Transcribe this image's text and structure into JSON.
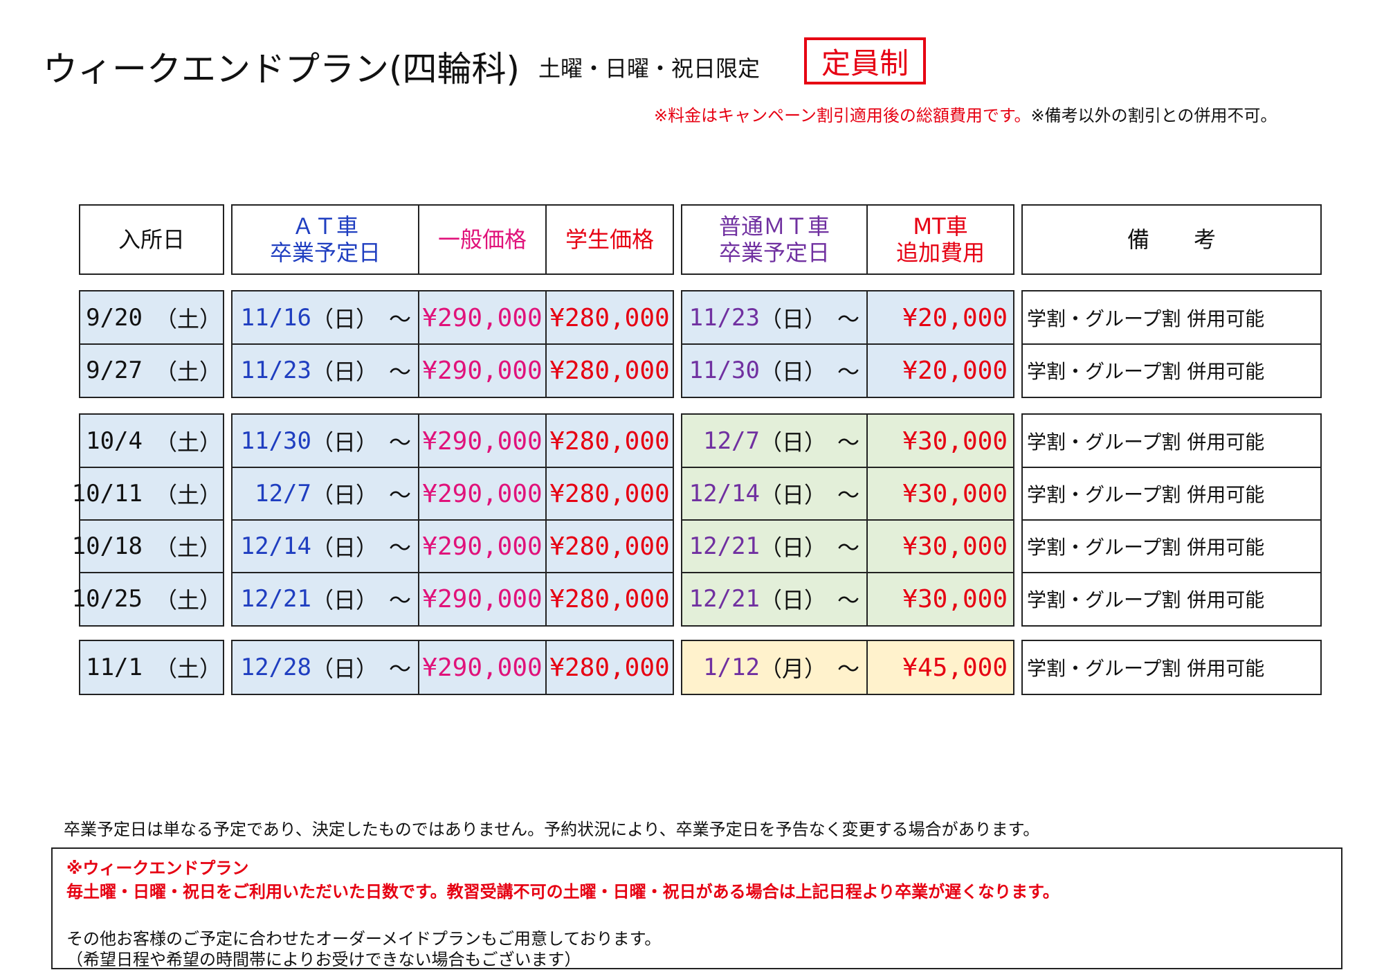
{
  "header": {
    "title": "ウィークエンドプラン(四輪科)",
    "subtitle": "土曜・日曜・祝日限定",
    "badge": "定員制",
    "fee_note_red": "※料金はキャンペーン割引適用後の総額費用です。",
    "fee_note_black": "※備考以外の割引との併用不可。"
  },
  "table": {
    "headers": {
      "entry": "入所日",
      "at_line1": "ＡＴ車",
      "at_line2": "卒業予定日",
      "general": "一般価格",
      "student": "学生価格",
      "mt_line1": "普通ＭＴ車",
      "mt_line2": "卒業予定日",
      "mtfee_line1": "MT車",
      "mtfee_line2": "追加費用",
      "remarks": "備　　考"
    },
    "groups": [
      {
        "mt_color": "#dce9f5",
        "rows": [
          {
            "entry": "9/20",
            "entry_day": "（土）",
            "at": "11/16",
            "at_day": "（日）　～",
            "general": "¥290,000",
            "student": "¥280,000",
            "mt": "11/23",
            "mt_day": "（日）　～",
            "mtfee": "¥20,000",
            "remarks": "学割・グループ割 併用可能"
          },
          {
            "entry": "9/27",
            "entry_day": "（土）",
            "at": "11/23",
            "at_day": "（日）　～",
            "general": "¥290,000",
            "student": "¥280,000",
            "mt": "11/30",
            "mt_day": "（日）　～",
            "mtfee": "¥20,000",
            "remarks": "学割・グループ割 併用可能"
          }
        ]
      },
      {
        "mt_color": "#e3efd9",
        "rows": [
          {
            "entry": "10/4",
            "entry_day": "（土）",
            "at": "11/30",
            "at_day": "（日）　～",
            "general": "¥290,000",
            "student": "¥280,000",
            "mt": "12/7",
            "mt_day": "（日）　～",
            "mtfee": "¥30,000",
            "remarks": "学割・グループ割 併用可能"
          },
          {
            "entry": "10/11",
            "entry_day": "（土）",
            "at": "12/7",
            "at_day": "（日）　～",
            "general": "¥290,000",
            "student": "¥280,000",
            "mt": "12/14",
            "mt_day": "（日）　～",
            "mtfee": "¥30,000",
            "remarks": "学割・グループ割 併用可能"
          },
          {
            "entry": "10/18",
            "entry_day": "（土）",
            "at": "12/14",
            "at_day": "（日）　～",
            "general": "¥290,000",
            "student": "¥280,000",
            "mt": "12/21",
            "mt_day": "（日）　～",
            "mtfee": "¥30,000",
            "remarks": "学割・グループ割 併用可能"
          },
          {
            "entry": "10/25",
            "entry_day": "（土）",
            "at": "12/21",
            "at_day": "（日）　～",
            "general": "¥290,000",
            "student": "¥280,000",
            "mt": "12/21",
            "mt_day": "（日）　～",
            "mtfee": "¥30,000",
            "remarks": "学割・グループ割 併用可能"
          }
        ]
      },
      {
        "mt_color": "#fff2cc",
        "rows": [
          {
            "entry": "11/1",
            "entry_day": "（土）",
            "at": "12/28",
            "at_day": "（日）　～",
            "general": "¥290,000",
            "student": "¥280,000",
            "mt": "1/12",
            "mt_day": "（月）　～",
            "mtfee": "¥45,000",
            "remarks": "学割・グループ割 併用可能"
          }
        ]
      }
    ]
  },
  "footer": {
    "disclaimer": "卒業予定日は単なる予定であり、決定したものではありません。予約状況により、卒業予定日を予告なく変更する場合があります。",
    "note_title": "※ウィークエンドプラン",
    "note_body": "毎土曜・日曜・祝日をご利用いただいた日数です。教習受講不可の土曜・日曜・祝日がある場合は上記日程より卒業が遅くなります。",
    "other_plan": "その他お客様のご予定に合わせたオーダーメイドプランもご用意しております。",
    "other_plan_note": "（希望日程や希望の時間帯によりお受けできない場合もございます）"
  }
}
